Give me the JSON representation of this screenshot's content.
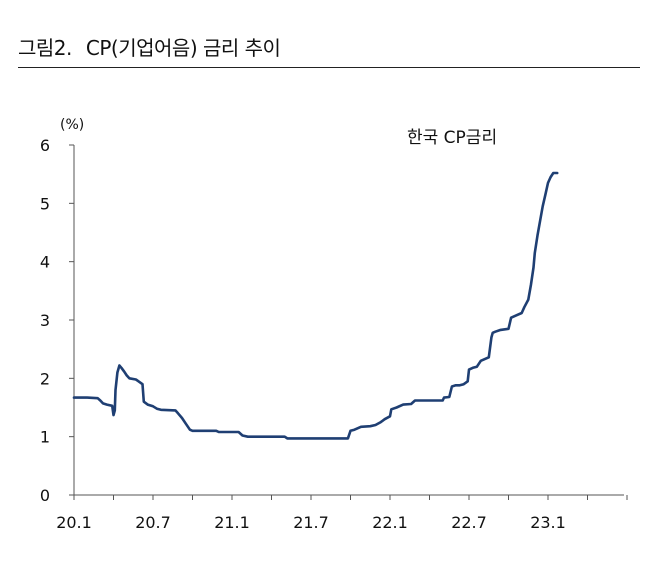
{
  "figure": {
    "number": "그림2.",
    "title": "CP(기업어음) 금리 추이"
  },
  "chart_data": {
    "type": "line",
    "ylabel": "(%)",
    "ylim": [
      0,
      6
    ],
    "y_ticks": [
      0,
      1,
      2,
      3,
      4,
      5,
      6
    ],
    "x_tick_labels": [
      "20.1",
      "20.7",
      "21.1",
      "21.7",
      "22.1",
      "22.7",
      "23.1"
    ],
    "x_range_months": [
      0,
      44
    ],
    "legend_position": "top-right",
    "grid": false,
    "series": [
      {
        "name": "한국 CP금리",
        "color": "#1f3f73",
        "points": [
          [
            0.0,
            1.67
          ],
          [
            1.0,
            1.67
          ],
          [
            1.8,
            1.66
          ],
          [
            2.0,
            1.62
          ],
          [
            2.2,
            1.57
          ],
          [
            2.5,
            1.55
          ],
          [
            2.9,
            1.53
          ],
          [
            3.0,
            1.37
          ],
          [
            3.1,
            1.45
          ],
          [
            3.15,
            1.8
          ],
          [
            3.3,
            2.1
          ],
          [
            3.45,
            2.22
          ],
          [
            3.6,
            2.18
          ],
          [
            3.8,
            2.12
          ],
          [
            4.0,
            2.05
          ],
          [
            4.2,
            2.0
          ],
          [
            4.7,
            1.98
          ],
          [
            4.9,
            1.95
          ],
          [
            5.2,
            1.9
          ],
          [
            5.3,
            1.6
          ],
          [
            5.6,
            1.55
          ],
          [
            6.0,
            1.52
          ],
          [
            6.3,
            1.48
          ],
          [
            6.6,
            1.46
          ],
          [
            7.7,
            1.45
          ],
          [
            7.9,
            1.4
          ],
          [
            8.2,
            1.32
          ],
          [
            8.5,
            1.22
          ],
          [
            8.8,
            1.12
          ],
          [
            9.0,
            1.1
          ],
          [
            10.8,
            1.1
          ],
          [
            11.0,
            1.08
          ],
          [
            12.5,
            1.08
          ],
          [
            12.8,
            1.02
          ],
          [
            13.2,
            1.0
          ],
          [
            16.0,
            1.0
          ],
          [
            16.2,
            0.97
          ],
          [
            19.0,
            0.97
          ],
          [
            20.8,
            0.97
          ],
          [
            21.0,
            1.1
          ],
          [
            21.3,
            1.12
          ],
          [
            21.8,
            1.17
          ],
          [
            22.5,
            1.18
          ],
          [
            22.9,
            1.2
          ],
          [
            23.3,
            1.25
          ],
          [
            23.6,
            1.3
          ],
          [
            24.0,
            1.35
          ],
          [
            24.1,
            1.47
          ],
          [
            24.5,
            1.5
          ],
          [
            25.0,
            1.55
          ],
          [
            25.6,
            1.56
          ],
          [
            25.9,
            1.62
          ],
          [
            27.0,
            1.62
          ],
          [
            28.0,
            1.62
          ],
          [
            28.1,
            1.67
          ],
          [
            28.5,
            1.68
          ],
          [
            28.7,
            1.86
          ],
          [
            29.0,
            1.88
          ],
          [
            29.3,
            1.88
          ],
          [
            29.6,
            1.9
          ],
          [
            29.9,
            1.95
          ],
          [
            30.0,
            2.15
          ],
          [
            30.3,
            2.18
          ],
          [
            30.6,
            2.2
          ],
          [
            30.9,
            2.3
          ],
          [
            31.2,
            2.33
          ],
          [
            31.5,
            2.36
          ],
          [
            31.7,
            2.7
          ],
          [
            31.8,
            2.78
          ],
          [
            32.0,
            2.8
          ],
          [
            32.4,
            2.83
          ],
          [
            33.0,
            2.85
          ],
          [
            33.2,
            3.04
          ],
          [
            33.6,
            3.08
          ],
          [
            34.0,
            3.12
          ],
          [
            34.2,
            3.22
          ],
          [
            34.5,
            3.35
          ],
          [
            34.7,
            3.6
          ],
          [
            34.9,
            3.9
          ],
          [
            35.0,
            4.15
          ],
          [
            35.2,
            4.45
          ],
          [
            35.4,
            4.7
          ],
          [
            35.6,
            4.95
          ],
          [
            35.8,
            5.15
          ],
          [
            36.0,
            5.35
          ],
          [
            36.2,
            5.45
          ],
          [
            36.4,
            5.52
          ],
          [
            36.7,
            5.52
          ]
        ]
      }
    ]
  }
}
